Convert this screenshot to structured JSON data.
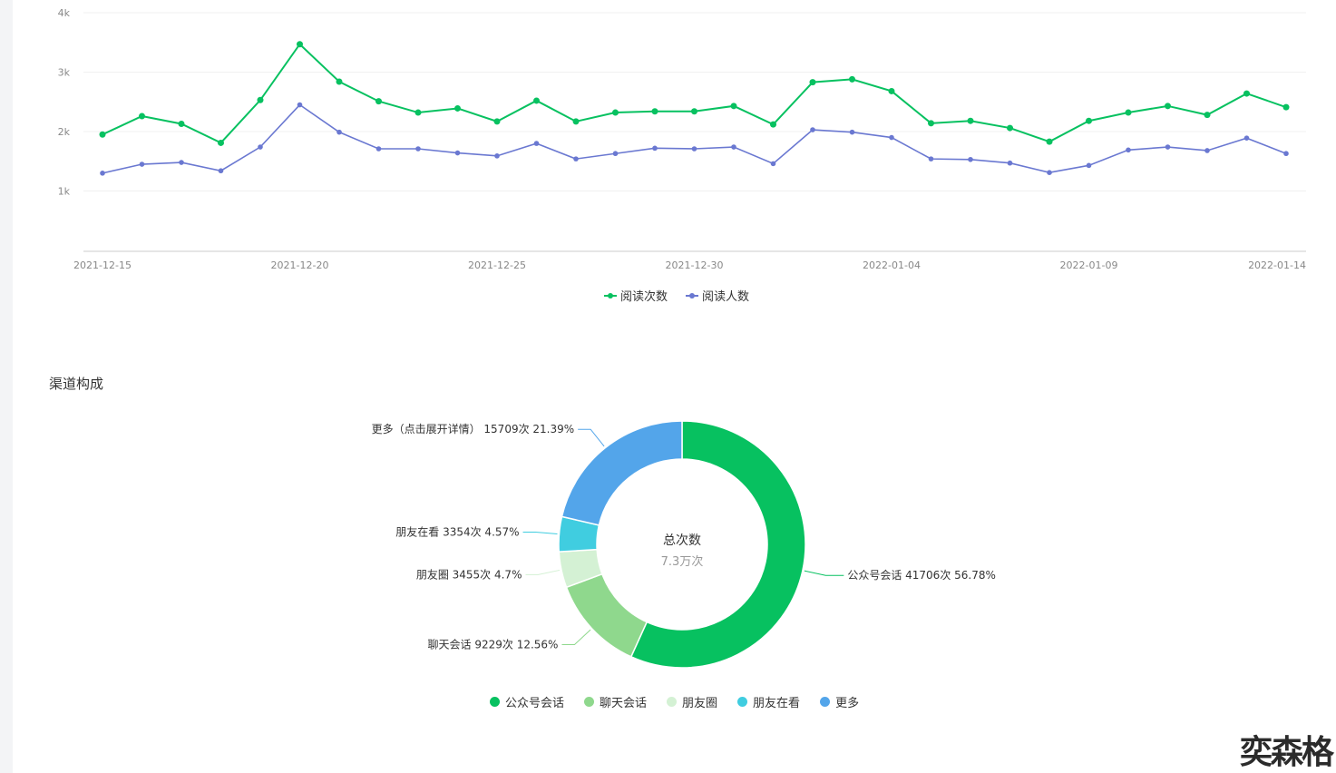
{
  "chart_data": [
    {
      "type": "line",
      "x": [
        "2021-12-15",
        "2021-12-16",
        "2021-12-17",
        "2021-12-18",
        "2021-12-19",
        "2021-12-20",
        "2021-12-21",
        "2021-12-22",
        "2021-12-23",
        "2021-12-24",
        "2021-12-25",
        "2021-12-26",
        "2021-12-27",
        "2021-12-28",
        "2021-12-29",
        "2021-12-30",
        "2021-12-31",
        "2022-01-01",
        "2022-01-02",
        "2022-01-03",
        "2022-01-04",
        "2022-01-05",
        "2022-01-06",
        "2022-01-07",
        "2022-01-08",
        "2022-01-09",
        "2022-01-10",
        "2022-01-11",
        "2022-01-12",
        "2022-01-13",
        "2022-01-14"
      ],
      "x_ticks": [
        "2021-12-15",
        "2021-12-20",
        "2021-12-25",
        "2021-12-30",
        "2022-01-04",
        "2022-01-09",
        "2022-01-14"
      ],
      "y_ticks": [
        "1k",
        "2k",
        "3k",
        "4k"
      ],
      "ylim": [
        0,
        4000
      ],
      "grid": true,
      "legend_position": "bottom-center",
      "series": [
        {
          "name": "阅读次数",
          "color": "#07c160",
          "values": [
            1950,
            2260,
            2130,
            1810,
            2530,
            3470,
            2840,
            2510,
            2320,
            2390,
            2170,
            2520,
            2170,
            2320,
            2340,
            2340,
            2430,
            2120,
            2830,
            2880,
            2680,
            2140,
            2180,
            2060,
            1830,
            2180,
            2320,
            2430,
            2280,
            2640,
            2410
          ]
        },
        {
          "name": "阅读人数",
          "color": "#6a78d1",
          "values": [
            1300,
            1450,
            1480,
            1340,
            1740,
            2450,
            1990,
            1710,
            1710,
            1640,
            1590,
            1800,
            1540,
            1630,
            1720,
            1710,
            1740,
            1460,
            2030,
            1990,
            1900,
            1540,
            1530,
            1470,
            1310,
            1430,
            1690,
            1740,
            1680,
            1890,
            1630
          ]
        }
      ]
    },
    {
      "type": "pie",
      "title": "渠道构成",
      "center_title": "总次数",
      "center_value": "7.3万次",
      "legend_position": "bottom-center",
      "slices": [
        {
          "name": "公众号会话",
          "value": 41706,
          "percent": 56.78,
          "color": "#07c160",
          "label": "公众号会话 41706次 56.78%"
        },
        {
          "name": "聊天会话",
          "value": 9229,
          "percent": 12.56,
          "color": "#8fd88d",
          "label": "聊天会话 9229次 12.56%"
        },
        {
          "name": "朋友圈",
          "value": 3455,
          "percent": 4.7,
          "color": "#d4f1d4",
          "label": "朋友圈 3455次 4.7%"
        },
        {
          "name": "朋友在看",
          "value": 3354,
          "percent": 4.57,
          "color": "#40cde0",
          "label": "朋友在看 3354次 4.57%"
        },
        {
          "name": "更多",
          "value": 15709,
          "percent": 21.39,
          "color": "#53a5ea",
          "label": "更多（点击展开详情） 15709次 21.39%"
        }
      ]
    }
  ],
  "watermark": "奕森格"
}
